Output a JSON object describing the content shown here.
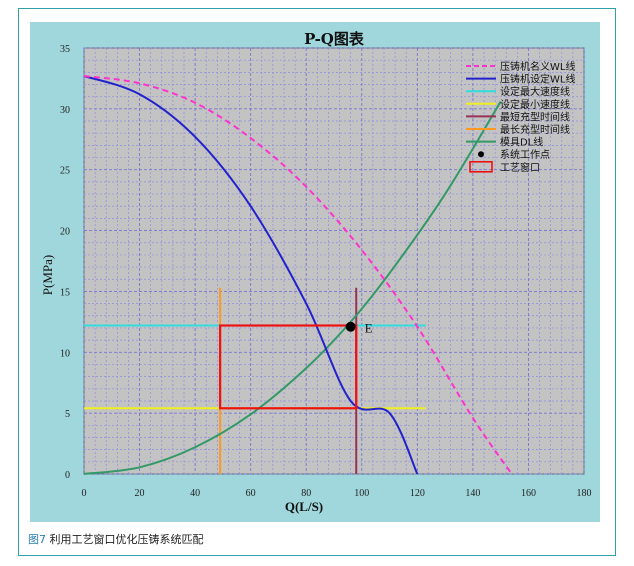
{
  "caption": {
    "figure_label": "图7",
    "text": " 利用工艺窗口优化压铸系统匹配"
  },
  "chart_data": {
    "type": "line",
    "title": "P-Q图表",
    "xlabel": "Q(L/S)",
    "ylabel": "P(MPa)",
    "xlim": [
      0,
      180
    ],
    "ylim": [
      0,
      35
    ],
    "xticks": [
      0,
      20,
      40,
      60,
      80,
      100,
      120,
      140,
      160,
      180
    ],
    "yticks": [
      0,
      5,
      10,
      15,
      20,
      25,
      30,
      35
    ],
    "grid": true,
    "legend_position": "top-right",
    "series": [
      {
        "name": "压铸机名义WL线",
        "color": "#ff33cc",
        "style": "dashed",
        "x": [
          0,
          20,
          40,
          60,
          80,
          100,
          120,
          140,
          154
        ],
        "y": [
          32.7,
          32.1,
          30.5,
          27.6,
          23.6,
          18.4,
          12.1,
          4.6,
          0
        ]
      },
      {
        "name": "压铸机设定WL线",
        "color": "#2222cc",
        "style": "solid",
        "x": [
          0,
          20,
          40,
          60,
          80,
          96,
          110,
          120
        ],
        "y": [
          32.7,
          31.2,
          27.7,
          22.0,
          14.0,
          6.0,
          5.0,
          0
        ]
      },
      {
        "name": "设定最大速度线",
        "color": "#33dddd",
        "style": "solid",
        "x": [
          0,
          123
        ],
        "y": [
          12.2,
          12.2
        ]
      },
      {
        "name": "设定最小速度线",
        "color": "#eeee22",
        "style": "solid",
        "x": [
          0,
          123
        ],
        "y": [
          5.4,
          5.4
        ]
      },
      {
        "name": "最短充型时间线",
        "color": "#993355",
        "style": "solid",
        "x": [
          98,
          98
        ],
        "y": [
          0,
          15.3
        ]
      },
      {
        "name": "最长充型时间线",
        "color": "#ff9922",
        "style": "solid",
        "x": [
          49,
          49
        ],
        "y": [
          0,
          15.3
        ]
      },
      {
        "name": "模具DL线",
        "color": "#339966",
        "style": "solid",
        "x": [
          0,
          20,
          40,
          60,
          80,
          96,
          110,
          130,
          150
        ],
        "y": [
          0,
          0.55,
          2.2,
          4.9,
          8.7,
          12.5,
          16.5,
          23.0,
          30.6
        ]
      }
    ],
    "points": [
      {
        "name": "系统工作点",
        "label": "E",
        "x": 96,
        "y": 12.1,
        "color": "#000000"
      }
    ],
    "window": {
      "name": "工艺窗口",
      "x0": 49,
      "x1": 98,
      "y0": 5.4,
      "y1": 12.2,
      "color": "#ee1111"
    }
  }
}
